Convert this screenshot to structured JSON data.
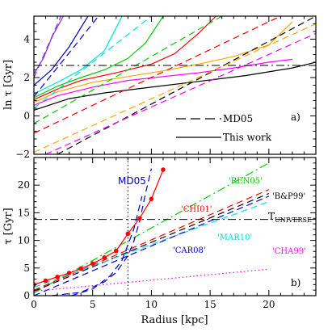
{
  "chart_data": [
    {
      "type": "line",
      "panel_label": "a)",
      "ylabel": "ln τ [Gyr]",
      "xlim": [
        0,
        24
      ],
      "ylim": [
        -2,
        5.2
      ],
      "yticks": [
        -2,
        0,
        2,
        4
      ],
      "legend": {
        "placement": "bottom-right",
        "entries": [
          {
            "name": "MD05",
            "style": "dashed"
          },
          {
            "name": "This work",
            "style": "solid"
          }
        ]
      },
      "reference_line": {
        "y": 2.63,
        "style": "dash-dot",
        "color": "#000000"
      },
      "series": [
        {
          "style": "solid",
          "color": "#000000",
          "x": [
            0,
            3,
            6,
            10,
            14,
            18,
            22,
            24
          ],
          "y": [
            0.3,
            0.9,
            1.2,
            1.5,
            1.8,
            2.1,
            2.5,
            2.8
          ]
        },
        {
          "style": "solid",
          "color": "#ff00ff",
          "x": [
            0,
            2,
            5,
            8,
            11,
            14,
            17,
            20,
            22
          ],
          "y": [
            0.55,
            1.05,
            1.5,
            1.85,
            2.05,
            2.25,
            2.5,
            2.8,
            2.95
          ]
        },
        {
          "style": "solid",
          "color": "#ffa500",
          "x": [
            0,
            2,
            5,
            8,
            11,
            14,
            17,
            20,
            22
          ],
          "y": [
            0.7,
            1.25,
            1.75,
            2.05,
            2.35,
            2.7,
            3.1,
            3.7,
            4.9
          ]
        },
        {
          "style": "solid",
          "color": "#ff0000",
          "x": [
            0,
            2,
            4,
            7,
            10,
            12,
            14,
            15.5
          ],
          "y": [
            0.85,
            1.4,
            1.85,
            2.25,
            2.7,
            3.25,
            4.3,
            5.2
          ]
        },
        {
          "style": "solid",
          "color": "#00cc00",
          "x": [
            0,
            2,
            4,
            6,
            8,
            9.5,
            11
          ],
          "y": [
            0.95,
            1.55,
            2.0,
            2.4,
            3.0,
            3.8,
            5.2
          ]
        },
        {
          "style": "solid",
          "color": "#00e0e0",
          "x": [
            0,
            2,
            4,
            6,
            7.5
          ],
          "y": [
            1.15,
            1.75,
            2.4,
            3.4,
            5.2
          ]
        },
        {
          "style": "solid",
          "color": "#0000cc",
          "x": [
            0,
            1.5,
            3,
            4.6
          ],
          "y": [
            1.6,
            2.4,
            3.6,
            5.2
          ]
        },
        {
          "style": "solid",
          "color": "#8a2be2",
          "x": [
            0,
            0.8,
            1.6,
            2.5
          ],
          "y": [
            2.2,
            3.0,
            4.2,
            5.2
          ]
        },
        {
          "style": "dashed",
          "color": "#000000",
          "x": [
            2,
            24
          ],
          "y": [
            -2,
            5.2
          ]
        },
        {
          "style": "dashed",
          "color": "#ff00ff",
          "x": [
            1,
            24
          ],
          "y": [
            -2,
            4.3
          ]
        },
        {
          "style": "dashed",
          "color": "#ffa500",
          "x": [
            0,
            24
          ],
          "y": [
            -1.9,
            4.8
          ]
        },
        {
          "style": "dashed",
          "color": "#ff0000",
          "x": [
            0,
            21
          ],
          "y": [
            -0.9,
            5.2
          ]
        },
        {
          "style": "dashed",
          "color": "#00cc00",
          "x": [
            0,
            16
          ],
          "y": [
            -0.4,
            5.2
          ]
        },
        {
          "style": "dashed",
          "color": "#00e0e0",
          "x": [
            0,
            10
          ],
          "y": [
            0.4,
            5.2
          ]
        },
        {
          "style": "dashed",
          "color": "#0000cc",
          "x": [
            0,
            5.5
          ],
          "y": [
            1.0,
            5.2
          ]
        },
        {
          "style": "dashed",
          "color": "#8a2be2",
          "x": [
            0,
            2.3
          ],
          "y": [
            2.0,
            5.2
          ]
        }
      ]
    },
    {
      "type": "line",
      "panel_label": "b)",
      "xlabel": "Radius [kpc]",
      "ylabel": "τ [Gyr]",
      "xlim": [
        0,
        24
      ],
      "ylim": [
        0,
        25
      ],
      "xticks": [
        0,
        5,
        10,
        15,
        20
      ],
      "yticks": [
        0,
        5,
        10,
        15,
        20
      ],
      "reference_line": {
        "y": 13.8,
        "style": "dash-dot",
        "color": "#000000",
        "label": "T",
        "label_sub": "UNIVERSE"
      },
      "vertical_line": {
        "x": 8,
        "style": "dotted",
        "color": "#000000"
      },
      "series": [
        {
          "name": "'REN05'",
          "style": "dash-dot",
          "color": "#00cc00",
          "x": [
            0,
            20
          ],
          "y": [
            0.5,
            24
          ]
        },
        {
          "name": "'CHI01'",
          "style": "dashed",
          "color": "#ff0000",
          "x": [
            0,
            20
          ],
          "y": [
            1.0,
            19.2
          ]
        },
        {
          "name": "'B&P99'",
          "style": "dashed",
          "color": "#000000",
          "x": [
            0,
            20
          ],
          "y": [
            0.8,
            18.5
          ]
        },
        {
          "name": "'MAR10'",
          "style": "dashed",
          "color": "#00e0e0",
          "x": [
            0,
            20
          ],
          "y": [
            1.5,
            17.0
          ]
        },
        {
          "name": "'CAR08'",
          "style": "dashed",
          "color": "#0000cc",
          "x": [
            0,
            20
          ],
          "y": [
            0.0,
            18.0
          ]
        },
        {
          "name": "'CHA99'",
          "style": "dotted",
          "color": "#ff00ff",
          "x": [
            0,
            20
          ],
          "y": [
            0.8,
            4.8
          ]
        },
        {
          "name": "MD05",
          "style": "dashed",
          "color": "#0000cc",
          "x": [
            1.5,
            4,
            6,
            7,
            8,
            8.5,
            9,
            9.5,
            10
          ],
          "y": [
            0,
            0.6,
            2.5,
            4.2,
            7.2,
            9.8,
            13.5,
            18.5,
            23
          ]
        },
        {
          "style": "dashed",
          "color": "#0000cc",
          "x": [
            3.2,
            5,
            6.5,
            7.5,
            8.5,
            9.2
          ],
          "y": [
            0,
            1.2,
            3.6,
            6.4,
            12,
            18
          ]
        },
        {
          "style": "solid",
          "color": "#ff0000",
          "markers": true,
          "x": [
            0,
            1,
            2,
            3,
            4,
            5,
            6,
            7,
            8,
            9,
            10,
            11
          ],
          "y": [
            2.0,
            2.7,
            3.4,
            4.1,
            4.9,
            5.8,
            6.9,
            8.1,
            11.2,
            14.0,
            17.5,
            22.8
          ]
        }
      ]
    }
  ]
}
